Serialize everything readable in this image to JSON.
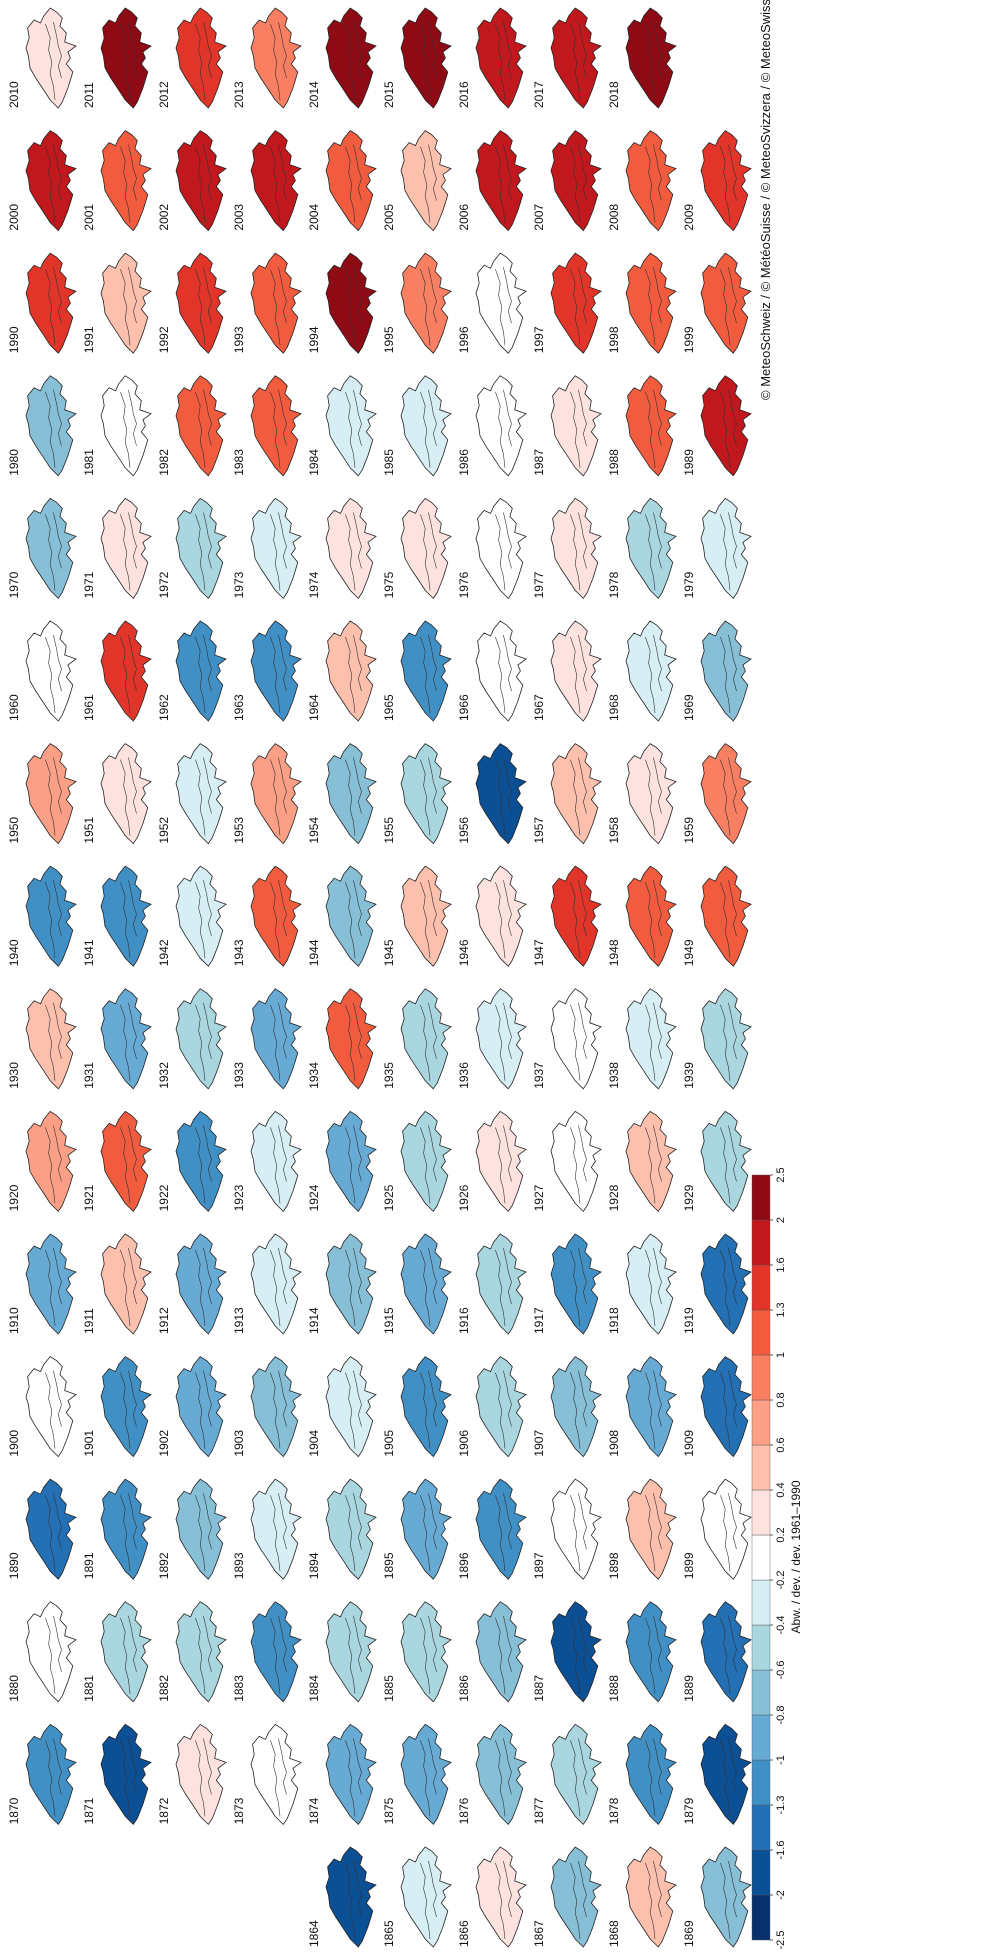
{
  "maps": [
    {
      "years": [
        2010,
        2011,
        2012,
        2013,
        2014,
        2015,
        2016,
        2017,
        2018
      ],
      "values": [
        0.2,
        2.0,
        1.3,
        0.9,
        2.0,
        2.0,
        1.6,
        1.7,
        2.3
      ]
    },
    {
      "years": [
        2000,
        2001,
        2002,
        2003,
        2004,
        2005,
        2006,
        2007,
        2008,
        2009
      ],
      "values": [
        1.7,
        1.0,
        1.8,
        1.9,
        1.0,
        0.5,
        1.7,
        1.8,
        1.1,
        1.5
      ]
    },
    {
      "years": [
        1990,
        1991,
        1992,
        1993,
        1994,
        1995,
        1996,
        1997,
        1998,
        1999
      ],
      "values": [
        1.4,
        0.5,
        1.4,
        1.0,
        2.0,
        0.9,
        -0.2,
        1.5,
        1.1,
        1.1
      ]
    },
    {
      "years": [
        1980,
        1981,
        1982,
        1983,
        1984,
        1985,
        1986,
        1987,
        1988,
        1989
      ],
      "values": [
        -0.7,
        -0.2,
        1.0,
        1.1,
        -0.4,
        -0.3,
        0.1,
        0.3,
        1.0,
        1.7
      ]
    },
    {
      "years": [
        1970,
        1971,
        1972,
        1973,
        1974,
        1975,
        1976,
        1977,
        1978,
        1979
      ],
      "values": [
        -0.7,
        0.2,
        -0.5,
        -0.4,
        0.3,
        0.3,
        0.1,
        0.3,
        -0.6,
        -0.3
      ]
    },
    {
      "years": [
        1960,
        1961,
        1962,
        1963,
        1964,
        1965,
        1966,
        1967,
        1968,
        1969
      ],
      "values": [
        0.1,
        1.3,
        -1.1,
        -1.1,
        0.5,
        -1.1,
        0.1,
        0.2,
        -0.3,
        -0.7
      ]
    },
    {
      "years": [
        1950,
        1951,
        1952,
        1953,
        1954,
        1955,
        1956,
        1957,
        1958,
        1959
      ],
      "values": [
        0.6,
        0.3,
        -0.3,
        0.6,
        -0.7,
        -0.5,
        -1.7,
        0.4,
        0.3,
        0.9
      ]
    },
    {
      "years": [
        1940,
        1941,
        1942,
        1943,
        1944,
        1945,
        1946,
        1947,
        1948,
        1949
      ],
      "values": [
        -1.2,
        -1.1,
        -0.3,
        1.0,
        -0.7,
        0.4,
        0.2,
        1.4,
        1.2,
        1.2
      ]
    },
    {
      "years": [
        1930,
        1931,
        1932,
        1933,
        1934,
        1935,
        1936,
        1937,
        1938,
        1939
      ],
      "values": [
        0.4,
        -1.0,
        -0.5,
        -1.0,
        1.0,
        -0.6,
        -0.3,
        -0.2,
        -0.3,
        -0.6
      ]
    },
    {
      "years": [
        1920,
        1921,
        1922,
        1923,
        1924,
        1925,
        1926,
        1927,
        1928,
        1929
      ],
      "values": [
        0.7,
        1.1,
        -1.1,
        -0.3,
        -0.9,
        -0.6,
        0.2,
        -0.2,
        0.4,
        -0.5
      ]
    },
    {
      "years": [
        1910,
        1911,
        1912,
        1913,
        1914,
        1915,
        1916,
        1917,
        1918,
        1919
      ],
      "values": [
        -0.9,
        0.4,
        -1.0,
        -0.3,
        -0.8,
        -0.9,
        -0.6,
        -1.3,
        -0.3,
        -1.4
      ]
    },
    {
      "years": [
        1900,
        1901,
        1902,
        1903,
        1904,
        1905,
        1906,
        1907,
        1908,
        1909
      ],
      "values": [
        -0.2,
        -1.1,
        -0.9,
        -0.8,
        -0.3,
        -1.2,
        -0.6,
        -0.8,
        -1.0,
        -1.4
      ]
    },
    {
      "years": [
        1890,
        1891,
        1892,
        1893,
        1894,
        1895,
        1896,
        1897,
        1898,
        1899
      ],
      "values": [
        -1.6,
        -1.3,
        -0.7,
        -0.4,
        -0.6,
        -0.9,
        -1.3,
        -0.2,
        0.4,
        0.1
      ]
    },
    {
      "years": [
        1880,
        1881,
        1882,
        1883,
        1884,
        1885,
        1886,
        1887,
        1888,
        1889
      ],
      "values": [
        -0.2,
        -0.6,
        -0.5,
        -1.3,
        -0.5,
        -0.6,
        -0.8,
        -1.8,
        -1.3,
        -1.4
      ]
    },
    {
      "years": [
        1870,
        1871,
        1872,
        1873,
        1874,
        1875,
        1876,
        1877,
        1878,
        1879
      ],
      "values": [
        -1.1,
        -1.7,
        0.3,
        -0.2,
        -0.9,
        -0.9,
        -0.8,
        -0.6,
        -1.2,
        -1.9
      ]
    },
    {
      "years": [
        1864,
        1865,
        1866,
        1867,
        1868,
        1869
      ],
      "values": [
        -1.8,
        -0.3,
        0.2,
        -0.7,
        0.4,
        -0.7
      ]
    }
  ],
  "colorbar": {
    "label": "Abw. / dev. / dev. 1961–1990",
    "ticks": [
      -2.5,
      -2,
      -1.6,
      -1.3,
      -1,
      -0.8,
      -0.6,
      -0.4,
      -0.2,
      0.2,
      0.4,
      0.6,
      0.8,
      1,
      1.3,
      1.6,
      2,
      2.5
    ],
    "colors": [
      "#08306b",
      "#0b4f95",
      "#2370b4",
      "#4190c5",
      "#67aad3",
      "#86bfd6",
      "#a9d6df",
      "#d6eef4",
      "#ffffff",
      "#fde2df",
      "#fcc0ad",
      "#fb9f86",
      "#f87f62",
      "#f15c3f",
      "#e2352a",
      "#c0181d",
      "#8e0a14"
    ]
  },
  "credit": "© MeteoSchweiz / © MétéoSuisse / © MeteoSvizzera / © MeteoSwiss"
}
